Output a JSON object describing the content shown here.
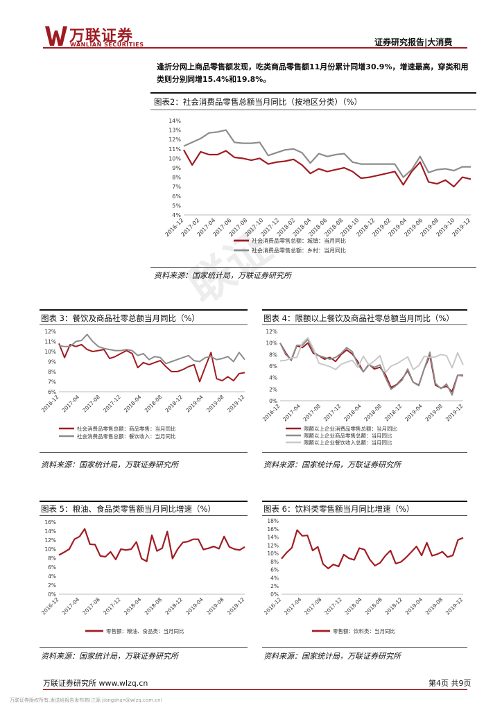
{
  "header": {
    "logo_text": "万联证券",
    "logo_en": "WANLIAN SECURITIES",
    "report_type": "证券研究报告|大消费"
  },
  "intro": "逢折分网上商品零售额发现，吃类商品零售额11月份累计同增30.9%，增速最高，穿类和用类则分别同增15.4%和19.8%。",
  "watermark": "联证",
  "colors": {
    "red": "#a11c22",
    "gray": "#8c8c8c",
    "lightgray": "#c8c8c8"
  },
  "charts": {
    "c2": {
      "title": "图表2：社会消费品零售总额当月同比（按地区分类）（%）",
      "source": "资料来源：国家统计局，万联证券研究所",
      "chart_data": {
        "type": "line",
        "y_ticks": [
          "14%",
          "13%",
          "12%",
          "11%",
          "10%",
          "9%",
          "8%",
          "7%",
          "6%",
          "5%",
          "4%"
        ],
        "x_ticks": [
          "2016-12",
          "2017-02",
          "2017-04",
          "2017-06",
          "2017-08",
          "2017-10",
          "2017-12",
          "2018-02",
          "2018-04",
          "2018-06",
          "2018-08",
          "2018-10",
          "2018-12",
          "2019-02",
          "2019-04",
          "2019-06",
          "2019-08",
          "2019-10",
          "2019-12"
        ],
        "ylim": [
          4,
          14
        ],
        "series": [
          {
            "name": "社会消费品零售总额：城镇：当月同比",
            "color": "#a11c22",
            "values": [
              10.9,
              9.3,
              10.7,
              10.4,
              10.4,
              10.8,
              10.1,
              10.0,
              9.8,
              10.0,
              9.4,
              9.6,
              9.7,
              9.9,
              9.3,
              8.4,
              8.9,
              8.6,
              8.8,
              9.0,
              8.6,
              7.9,
              8.0,
              8.2,
              8.4,
              8.6,
              7.2,
              8.6,
              9.6,
              7.5,
              7.3,
              7.7,
              7.0,
              8.0,
              7.8
            ]
          },
          {
            "name": "社会消费品零售总额：乡村：当月同比",
            "color": "#8c8c8c",
            "values": [
              11.3,
              11.7,
              12.1,
              12.7,
              12.8,
              13.0,
              11.7,
              11.6,
              11.6,
              11.7,
              10.3,
              10.6,
              10.9,
              11.0,
              10.6,
              9.5,
              10.5,
              10.2,
              10.4,
              10.5,
              9.6,
              9.4,
              9.4,
              9.4,
              9.4,
              9.4,
              8.0,
              8.8,
              10.2,
              8.5,
              8.8,
              8.9,
              8.7,
              9.1,
              9.1
            ]
          }
        ]
      }
    },
    "c3": {
      "title": "图表 3：餐饮及商品社零总额当月同比（%）",
      "source": "资料来源：国家统计局，万联证券研究所",
      "chart_data": {
        "type": "line",
        "y_ticks": [
          "12%",
          "11%",
          "10%",
          "9%",
          "8%",
          "7%",
          "6%"
        ],
        "x_ticks": [
          "2016-12",
          "2017-04",
          "2017-08",
          "2017-12",
          "2018-04",
          "2018-08",
          "2018-12",
          "2019-04",
          "2019-08",
          "2019-12"
        ],
        "ylim": [
          6,
          12
        ],
        "series": [
          {
            "name": "社会消费品零售总额：商品零售：当月同比",
            "color": "#a11c22",
            "values": [
              10.8,
              9.4,
              10.7,
              10.5,
              10.7,
              10.2,
              10.0,
              10.1,
              10.2,
              9.3,
              9.5,
              9.8,
              10.1,
              9.8,
              8.4,
              8.9,
              8.7,
              8.9,
              9.1,
              8.5,
              8.0,
              8.0,
              8.2,
              8.5,
              8.7,
              7.0,
              8.5,
              9.9,
              7.3,
              7.1,
              7.5,
              7.1,
              7.8,
              7.9
            ]
          },
          {
            "name": "社会消费品零售总额：餐饮收入：当月同比",
            "color": "#8c8c8c",
            "values": [
              10.6,
              10.5,
              10.5,
              11.0,
              11.1,
              11.7,
              11.0,
              10.5,
              10.3,
              10.2,
              10.1,
              10.1,
              10.2,
              10.1,
              9.6,
              9.8,
              9.2,
              9.5,
              9.4,
              8.8,
              9.0,
              9.2,
              9.4,
              9.6,
              9.1,
              9.0,
              9.4,
              9.5,
              9.2,
              9.3,
              9.5,
              9.0,
              9.9,
              9.2
            ]
          }
        ]
      }
    },
    "c4": {
      "title": "图表 4：限额以上餐饮及商品社零总额当月同比（%）",
      "source": "资料来源：国家统计局，万联证券研究所",
      "chart_data": {
        "type": "line",
        "y_ticks": [
          "12%",
          "10%",
          "8%",
          "6%",
          "4%",
          "2%",
          "0%"
        ],
        "x_ticks": [
          "2016-12",
          "2017-04",
          "2017-08",
          "2017-12",
          "2018-04",
          "2018-08",
          "2018-12",
          "2019-04",
          "2019-08",
          "2019-12"
        ],
        "ylim": [
          0,
          12
        ],
        "series": [
          {
            "name": "限额以上企业消费品零售总额：当月同比",
            "color": "#a11c22",
            "values": [
              10.0,
              8.3,
              7.0,
              9.5,
              9.2,
              10.0,
              8.2,
              7.8,
              7.2,
              7.5,
              6.8,
              8.0,
              8.8,
              8.1,
              6.8,
              5.0,
              6.3,
              5.5,
              5.8,
              4.5,
              2.3,
              2.8,
              3.8,
              5.2,
              3.2,
              2.7,
              5.6,
              7.8,
              2.7,
              2.2,
              2.5,
              1.6,
              4.4,
              4.4
            ]
          },
          {
            "name": "限额以上企业商品零售总额：当月同比",
            "color": "#8c8c8c",
            "values": [
              10.0,
              8.0,
              7.1,
              9.6,
              9.6,
              10.6,
              8.5,
              7.8,
              7.5,
              7.2,
              7.5,
              8.2,
              9.2,
              8.5,
              6.3,
              5.0,
              6.2,
              5.8,
              6.2,
              4.0,
              2.0,
              2.7,
              3.6,
              5.5,
              3.2,
              2.6,
              5.6,
              8.4,
              3.0,
              2.1,
              2.9,
              1.0,
              4.4,
              4.3
            ]
          },
          {
            "name": "限额以上企业餐饮收入总额：当月同比",
            "color": "#c8c8c8",
            "values": [
              6.9,
              7.0,
              7.4,
              7.5,
              10.0,
              10.9,
              9.0,
              6.5,
              6.2,
              5.9,
              5.4,
              6.3,
              6.7,
              7.0,
              5.8,
              7.7,
              6.2,
              6.9,
              7.8,
              4.9,
              6.0,
              6.4,
              7.0,
              7.6,
              5.4,
              6.1,
              7.7,
              7.5,
              7.6,
              8.0,
              7.8,
              5.7,
              8.3,
              6.2
            ]
          }
        ]
      }
    },
    "c5": {
      "title": "图表 5：粮油、食品类零售额当月同比增速（%）",
      "source": "资料来源：国家统计局，万联证券研究所",
      "chart_data": {
        "type": "line",
        "y_ticks": [
          "16%",
          "14%",
          "12%",
          "10%",
          "8%",
          "6%",
          "4%",
          "2%",
          "0%"
        ],
        "x_ticks": [
          "2016-12",
          "2017-04",
          "2017-08",
          "2017-12",
          "2018-04",
          "2018-08",
          "2018-12",
          "2019-04",
          "2019-08",
          "2019-12"
        ],
        "ylim": [
          0,
          16
        ],
        "series": [
          {
            "name": "零售额：粮油、食品类：当月同比",
            "color": "#a11c22",
            "values": [
              8.7,
              9.3,
              10.0,
              12.2,
              12.8,
              14.5,
              11.1,
              11.0,
              8.5,
              8.3,
              9.4,
              7.7,
              10.0,
              9.8,
              10.0,
              11.6,
              7.9,
              7.3,
              13.1,
              9.6,
              10.2,
              13.9,
              7.9,
              10.0,
              11.5,
              11.7,
              12.2,
              12.2,
              9.9,
              10.2,
              10.6,
              10.1,
              12.8,
              10.5,
              10.0,
              9.8,
              10.5
            ]
          }
        ]
      }
    },
    "c6": {
      "title": "图表 6：饮料类零售额当月同比增速（%）",
      "source": "资料来源：国家统计局，万联证券研究所",
      "chart_data": {
        "type": "line",
        "y_ticks": [
          "18%",
          "16%",
          "14%",
          "12%",
          "10%",
          "8%",
          "6%",
          "4%",
          "2%",
          "0%"
        ],
        "x_ticks": [
          "2016-12",
          "2017-04",
          "2017-08",
          "2017-12",
          "2018-04",
          "2018-08",
          "2018-12",
          "2019-04",
          "2019-08",
          "2019-12"
        ],
        "ylim": [
          0,
          18
        ],
        "series": [
          {
            "name": "零售额：饮料类：当月同比",
            "color": "#a11c22",
            "values": [
              8.7,
              10.2,
              11.4,
              15.7,
              14.3,
              14.4,
              10.7,
              11.6,
              7.4,
              6.3,
              7.3,
              6.8,
              9.7,
              8.8,
              8.4,
              11.3,
              10.9,
              8.5,
              7.0,
              7.7,
              9.4,
              10.7,
              7.5,
              7.9,
              9.0,
              10.3,
              11.7,
              9.5,
              12.6,
              9.4,
              9.8,
              10.4,
              9.1,
              9.5,
              13.3,
              13.8
            ]
          }
        ]
      }
    }
  },
  "footer": {
    "left": "万联证券研究所  www.wlzq.cn",
    "right": "第4页 共9页",
    "copyright": "万联证券版权所有,发送给报告发布商(江源 jiangshan@wlzq.com.cn)"
  }
}
